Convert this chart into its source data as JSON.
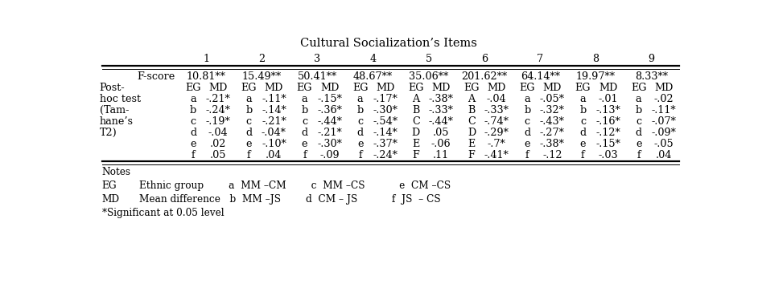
{
  "title": "Cultural Socialization’s Items",
  "col_numbers": [
    "1",
    "2",
    "3",
    "4",
    "5",
    "6",
    "7",
    "8",
    "9"
  ],
  "fscore_row": [
    "F-score",
    "10.81**",
    "15.49**",
    "50.41**",
    "48.67**",
    "35.06**",
    "201.62**",
    "64.14**",
    "19.97**",
    "8.33**"
  ],
  "posthoc_label": [
    "Post-",
    "hoc test",
    "(Tam-",
    "hane’s",
    "T2)"
  ],
  "eg_md_row": [
    "EG",
    "MD",
    "EG",
    "MD",
    "EG",
    "MD",
    "EG",
    "MD",
    "EG",
    "MD",
    "EG",
    "MD",
    "EG",
    "MD",
    "EG",
    "MD",
    "EG",
    "MD"
  ],
  "data_rows": [
    [
      "a",
      "-.21*",
      "a",
      "-.11*",
      "a",
      "-.15*",
      "a",
      "-.17*",
      "A",
      "-.38*",
      "A",
      "-.04",
      "a",
      "-.05*",
      "a",
      "-.01",
      "a",
      "-.02"
    ],
    [
      "b",
      "-.24*",
      "b",
      "-.14*",
      "b",
      "-.36*",
      "b",
      "-.30*",
      "B",
      "-.33*",
      "B",
      "-.33*",
      "b",
      "-.32*",
      "b",
      "-.13*",
      "b",
      "-.11*"
    ],
    [
      "c",
      "-.19*",
      "c",
      "-.21*",
      "c",
      "-.44*",
      "c",
      "-.54*",
      "C",
      "-.44*",
      "C",
      "-.74*",
      "c",
      "-.43*",
      "c",
      "-.16*",
      "c",
      "-.07*"
    ],
    [
      "d",
      "-.04",
      "d",
      "-.04*",
      "d",
      "-.21*",
      "d",
      "-.14*",
      "D",
      ".05",
      "D",
      "-.29*",
      "d",
      "-.27*",
      "d",
      "-.12*",
      "d",
      "-.09*"
    ],
    [
      "e",
      ".02",
      "e",
      "-.10*",
      "e",
      "-.30*",
      "e",
      "-.37*",
      "E",
      "-.06",
      "E",
      "-.7*",
      "e",
      "-.38*",
      "e",
      "-.15*",
      "e",
      "-.05"
    ],
    [
      "f",
      ".05",
      "f",
      ".04",
      "f",
      "-.09",
      "f",
      "-.24*",
      "F",
      ".11",
      "F",
      "-.41*",
      "f",
      "-.12",
      "f",
      "-.03",
      "f",
      ".04"
    ]
  ],
  "notes": [
    [
      "Notes",
      ""
    ],
    [
      "EG",
      "Ethnic group        a  MM –CM        c  MM –CS           e  CM –CS"
    ],
    [
      "MD",
      "Mean difference   b  MM –JS        d  CM – JS           f  JS  – CS"
    ],
    [
      "*Significant at 0.05 level",
      ""
    ]
  ],
  "font_size": 9.2,
  "title_font_size": 10.5
}
